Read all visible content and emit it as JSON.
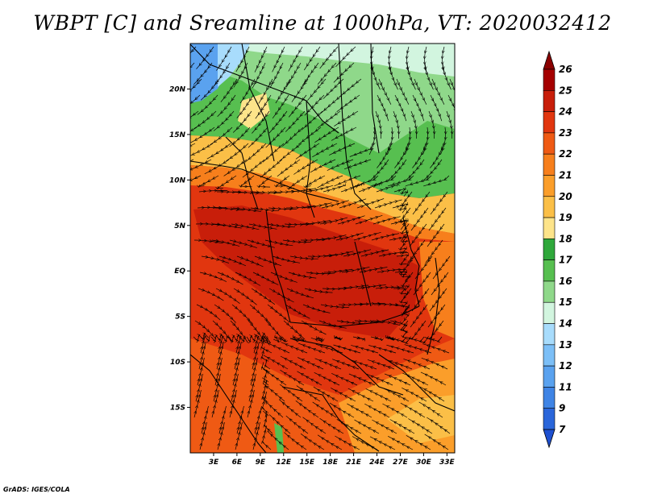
{
  "title": "WBPT [C] and Sreamline at 1000hPa, VT: 2020032412",
  "footer": "GrADS: IGES/COLA",
  "map": {
    "lon_range": [
      0,
      34
    ],
    "lat_range": [
      -20,
      25
    ],
    "lat_ticks": [
      {
        "value": 20,
        "label": "20N"
      },
      {
        "value": 15,
        "label": "15N"
      },
      {
        "value": 10,
        "label": "10N"
      },
      {
        "value": 5,
        "label": "5N"
      },
      {
        "value": 0,
        "label": "EQ"
      },
      {
        "value": -5,
        "label": "5S"
      },
      {
        "value": -10,
        "label": "10S"
      },
      {
        "value": -15,
        "label": "15S"
      }
    ],
    "lon_ticks": [
      {
        "value": 3,
        "label": "3E"
      },
      {
        "value": 6,
        "label": "6E"
      },
      {
        "value": 9,
        "label": "9E"
      },
      {
        "value": 12,
        "label": "12E"
      },
      {
        "value": 15,
        "label": "15E"
      },
      {
        "value": 18,
        "label": "18E"
      },
      {
        "value": 21,
        "label": "21E"
      },
      {
        "value": 24,
        "label": "24E"
      },
      {
        "value": 27,
        "label": "27E"
      },
      {
        "value": 30,
        "label": "30E"
      },
      {
        "value": 33,
        "label": "33E"
      }
    ]
  },
  "colorbar": {
    "labels": [
      "26",
      "25",
      "24",
      "23",
      "22",
      "21",
      "20",
      "19",
      "18",
      "17",
      "16",
      "15",
      "14",
      "13",
      "12",
      "11",
      "9",
      "7"
    ],
    "colors": [
      "#a50000",
      "#c81e0a",
      "#e1360f",
      "#ef5a14",
      "#f77f1c",
      "#fb9e2a",
      "#fbbf47",
      "#fde48a",
      "#2fa83b",
      "#57bf50",
      "#8fd88a",
      "#d2f5df",
      "#a8dcfc",
      "#7cbff7",
      "#5aa2ef",
      "#3f84e5",
      "#2a66da"
    ],
    "over_color": "#8b0000",
    "under_color": "#1e50d0"
  }
}
